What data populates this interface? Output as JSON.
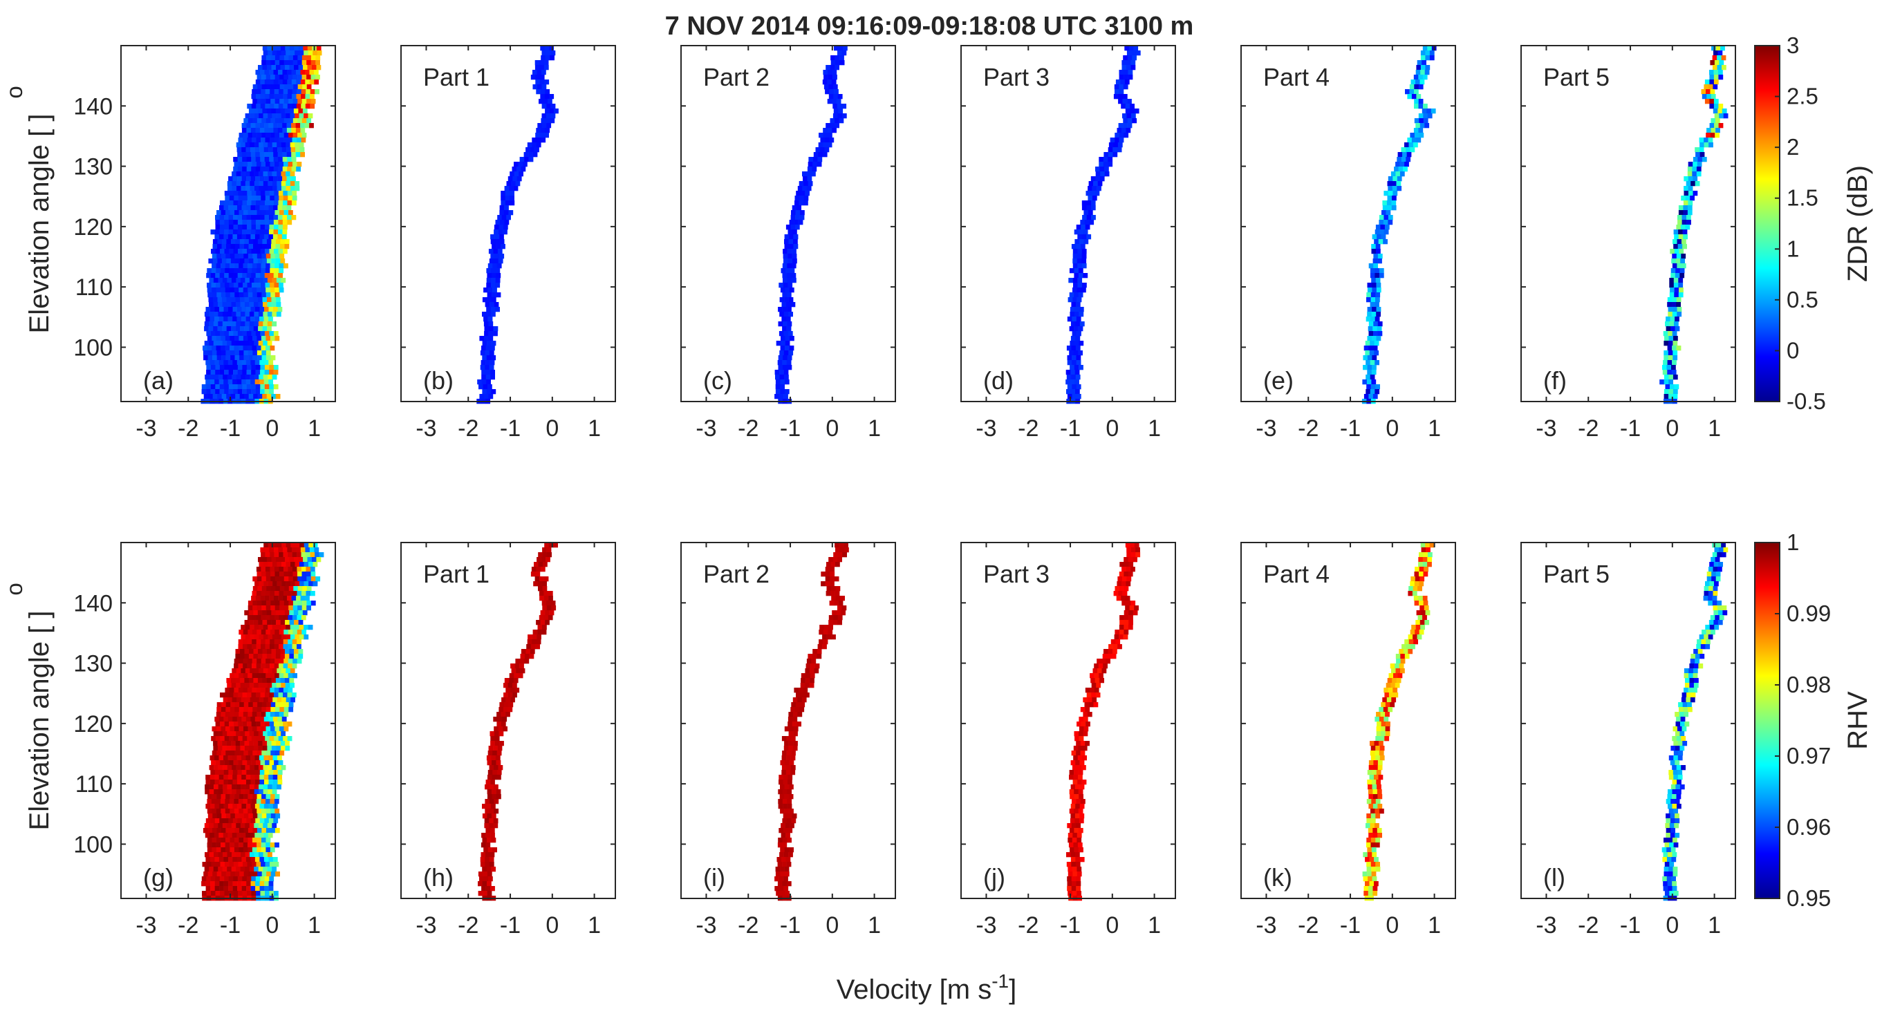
{
  "chart_data": {
    "type": "heatmap",
    "title": "7 NOV 2014 09:16:09-09:18:08 UTC 3100 m",
    "xlabel_prefix": "Velocity [m s",
    "xlabel_exp": "-1",
    "xlabel_suffix": "]",
    "ylabel": "Elevation angle [ ]",
    "ylabel_degree": "o",
    "xlim": [
      -3.6,
      1.5
    ],
    "ylim": [
      91,
      150
    ],
    "xticks": [
      -3,
      -2,
      -1,
      0,
      1
    ],
    "yticks": [
      100,
      110,
      120,
      130,
      140
    ],
    "rows": [
      {
        "variable": "ZDR",
        "colorbar_label": "ZDR (dB)",
        "clim": [
          -0.5,
          3
        ],
        "colorbar_ticks": [
          "-0.5",
          "0",
          "0.5",
          "1",
          "1.5",
          "2",
          "2.5",
          "3"
        ],
        "panels": [
          {
            "tag": "(a)",
            "part": ""
          },
          {
            "tag": "(b)",
            "part": "Part 1"
          },
          {
            "tag": "(c)",
            "part": "Part 2"
          },
          {
            "tag": "(d)",
            "part": "Part 3"
          },
          {
            "tag": "(e)",
            "part": "Part 4"
          },
          {
            "tag": "(f)",
            "part": "Part 5"
          }
        ]
      },
      {
        "variable": "RHV",
        "colorbar_label": "RHV",
        "clim": [
          0.95,
          1
        ],
        "colorbar_ticks": [
          "0.95",
          "0.96",
          "0.97",
          "0.98",
          "0.99",
          "1"
        ],
        "panels": [
          {
            "tag": "(g)",
            "part": ""
          },
          {
            "tag": "(h)",
            "part": "Part 1"
          },
          {
            "tag": "(i)",
            "part": "Part 2"
          },
          {
            "tag": "(j)",
            "part": "Part 3"
          },
          {
            "tag": "(k)",
            "part": "Part 4"
          },
          {
            "tag": "(l)",
            "part": "Part 5"
          }
        ]
      }
    ],
    "full_spectrum_edges": {
      "elevation": [
        91,
        100,
        110,
        120,
        130,
        140,
        149
      ],
      "left_velocity": [
        -1.65,
        -1.6,
        -1.55,
        -1.4,
        -0.95,
        -0.55,
        -0.25
      ],
      "right_velocity": [
        0.0,
        0.0,
        0.15,
        0.35,
        0.6,
        0.9,
        1.15
      ]
    },
    "part_centerlines": {
      "elevation": [
        91,
        95,
        100,
        105,
        110,
        115,
        120,
        125,
        130,
        133,
        136,
        139,
        142,
        145,
        149
      ],
      "velocity": [
        [
          -1.6,
          -1.6,
          -1.55,
          -1.5,
          -1.45,
          -1.4,
          -1.25,
          -1.05,
          -0.8,
          -0.5,
          -0.25,
          -0.1,
          -0.2,
          -0.4,
          -0.1
        ],
        [
          -1.2,
          -1.2,
          -1.15,
          -1.1,
          -1.1,
          -1.05,
          -0.95,
          -0.75,
          -0.5,
          -0.25,
          -0.1,
          0.2,
          -0.05,
          -0.1,
          0.2
        ],
        [
          -0.95,
          -0.95,
          -0.9,
          -0.9,
          -0.85,
          -0.85,
          -0.7,
          -0.5,
          -0.25,
          0.05,
          0.25,
          0.45,
          0.15,
          0.3,
          0.45
        ],
        [
          -0.55,
          -0.55,
          -0.5,
          -0.45,
          -0.45,
          -0.4,
          -0.25,
          -0.05,
          0.15,
          0.4,
          0.6,
          0.8,
          0.45,
          0.65,
          0.8
        ],
        [
          -0.1,
          -0.1,
          -0.05,
          0.0,
          0.05,
          0.1,
          0.2,
          0.35,
          0.5,
          0.7,
          0.95,
          1.1,
          0.8,
          1.0,
          1.1
        ]
      ]
    }
  }
}
